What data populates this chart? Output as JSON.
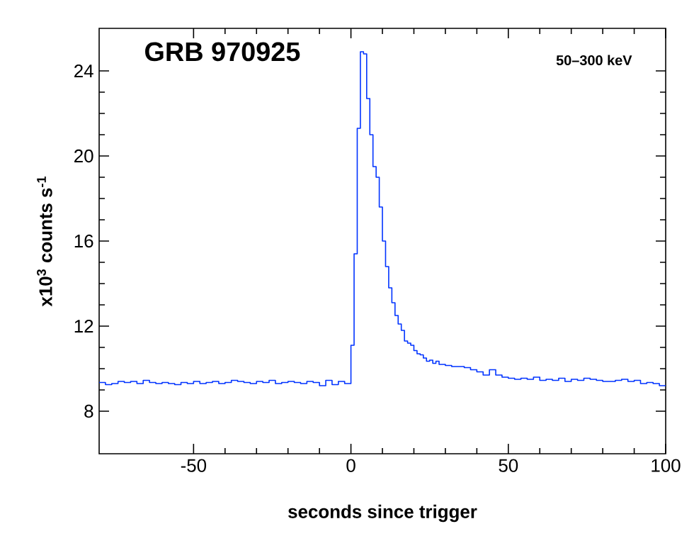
{
  "chart_data": {
    "type": "step",
    "title": "GRB 970925",
    "xlabel": "seconds since trigger",
    "ylabel": "x10$^{3}$ counts s$^{-1}$",
    "annotations": [
      "50–300 keV"
    ],
    "x": [
      -80,
      -78,
      -76,
      -74,
      -72,
      -70,
      -68,
      -66,
      -64,
      -62,
      -60,
      -58,
      -56,
      -54,
      -52,
      -50,
      -48,
      -46,
      -44,
      -42,
      -40,
      -38,
      -36,
      -34,
      -32,
      -30,
      -28,
      -26,
      -24,
      -22,
      -20,
      -18,
      -16,
      -14,
      -12,
      -10,
      -8,
      -6,
      -4,
      -2,
      -1,
      0,
      1,
      2,
      3,
      4,
      5,
      6,
      7,
      8,
      9,
      10,
      11,
      12,
      13,
      14,
      15,
      16,
      17,
      18,
      19,
      20,
      21,
      22,
      23,
      24,
      25,
      26,
      27,
      28,
      29,
      30,
      32,
      34,
      36,
      38,
      40,
      42,
      44,
      46,
      48,
      50,
      52,
      54,
      56,
      58,
      60,
      62,
      64,
      66,
      68,
      70,
      72,
      74,
      76,
      78,
      80,
      82,
      84,
      86,
      88,
      90,
      92,
      94,
      96,
      98,
      100
    ],
    "values": [
      9.35,
      9.25,
      9.3,
      9.4,
      9.35,
      9.4,
      9.3,
      9.45,
      9.35,
      9.3,
      9.35,
      9.3,
      9.25,
      9.35,
      9.3,
      9.4,
      9.3,
      9.35,
      9.4,
      9.3,
      9.35,
      9.45,
      9.4,
      9.35,
      9.3,
      9.4,
      9.35,
      9.45,
      9.3,
      9.35,
      9.4,
      9.35,
      9.3,
      9.4,
      9.35,
      9.2,
      9.45,
      9.25,
      9.4,
      9.3,
      9.3,
      11.1,
      15.4,
      21.3,
      24.9,
      24.8,
      22.7,
      21.0,
      19.5,
      19.0,
      17.6,
      16.0,
      14.8,
      13.8,
      13.1,
      12.5,
      12.1,
      11.8,
      11.3,
      11.2,
      11.1,
      10.85,
      10.7,
      10.65,
      10.5,
      10.35,
      10.4,
      10.25,
      10.35,
      10.2,
      10.2,
      10.15,
      10.1,
      10.1,
      10.05,
      9.95,
      9.85,
      9.7,
      9.95,
      9.7,
      9.6,
      9.55,
      9.5,
      9.55,
      9.5,
      9.6,
      9.45,
      9.5,
      9.45,
      9.55,
      9.4,
      9.5,
      9.45,
      9.55,
      9.5,
      9.45,
      9.4,
      9.4,
      9.45,
      9.5,
      9.4,
      9.45,
      9.3,
      9.35,
      9.3,
      9.2,
      9.2
    ],
    "color": "#0033ff",
    "xlim": [
      -80,
      100
    ],
    "ylim": [
      6,
      26
    ],
    "xticks": [
      -50,
      0,
      50,
      100
    ],
    "yticks": [
      8,
      12,
      16,
      20,
      24
    ],
    "grid": false
  }
}
